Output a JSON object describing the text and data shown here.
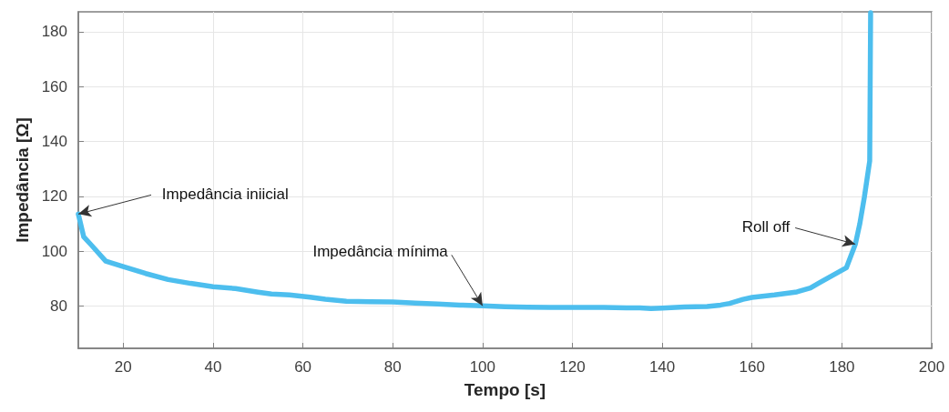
{
  "chart_data": {
    "type": "line",
    "xlabel": "Tempo [s]",
    "ylabel": "Impedância [Ω]",
    "xlim": [
      10,
      200
    ],
    "xticks": [
      20,
      40,
      60,
      80,
      100,
      120,
      140,
      160,
      180,
      200
    ],
    "ylim": [
      64.5,
      187.3
    ],
    "yticks": [
      80,
      100,
      120,
      140,
      160,
      180
    ],
    "grid": true,
    "marker": "none",
    "line_style": "solid",
    "series": [
      {
        "color": "#4dbeee",
        "x": [
          10,
          11.2,
          13,
          16.1,
          20,
          25,
          30,
          35,
          40,
          45,
          50,
          53,
          57,
          61.6,
          65,
          69.7,
          75,
          80,
          85,
          90,
          95,
          100,
          105,
          110,
          115,
          121.6,
          127,
          132,
          135,
          137.5,
          140,
          145,
          150,
          153,
          155,
          158,
          160,
          165,
          170,
          173,
          175,
          178,
          181,
          183,
          184,
          185,
          186.2,
          186.4
        ],
        "values": [
          113.5,
          105.2,
          102,
          96.3,
          94.3,
          91.8,
          89.6,
          88.2,
          87,
          86.3,
          85,
          84.3,
          84,
          83.2,
          82.4,
          81.7,
          81.5,
          81.4,
          81,
          80.7,
          80.3,
          80,
          79.7,
          79.5,
          79.4,
          79.4,
          79.4,
          79.3,
          79.3,
          79,
          79.2,
          79.6,
          79.8,
          80.3,
          80.9,
          82.4,
          83.1,
          84,
          85.1,
          86.5,
          88.4,
          91.2,
          93.9,
          102.5,
          110,
          119.6,
          132.9,
          187
        ]
      }
    ],
    "annotations": [
      {
        "text": "Impedância iniicial",
        "x": 10,
        "y": 113.5
      },
      {
        "text": "Impedância mínima",
        "x": 100,
        "y": 80
      },
      {
        "text": "Roll off",
        "x": 183,
        "y": 102.5
      }
    ]
  }
}
